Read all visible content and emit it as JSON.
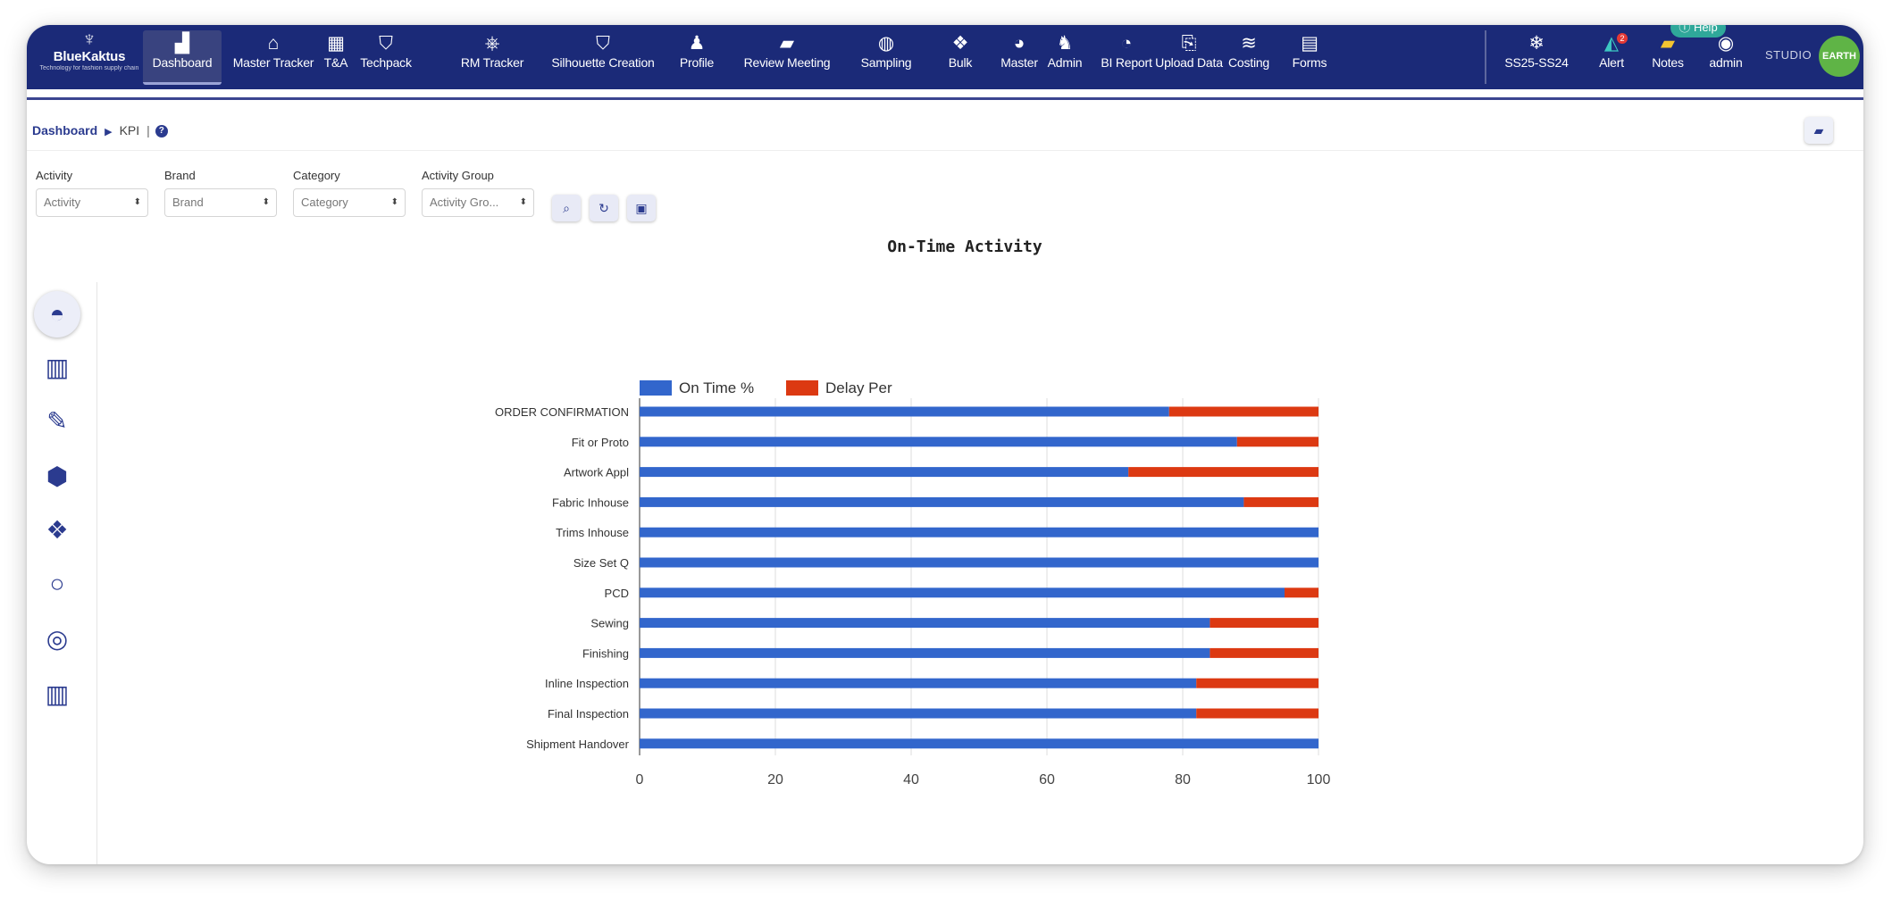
{
  "app": {
    "logo_text": "BlueKaktus",
    "logo_tagline": "Technology for fashion supply chain",
    "help_label": "Help",
    "studio_text": "STUDIO",
    "studio_badge": "EARTH"
  },
  "nav": {
    "items": [
      {
        "label": "Dashboard",
        "icon": "chart-area-icon",
        "glyph": "▟",
        "active": true
      },
      {
        "label": "Master Tracker",
        "icon": "home-icon",
        "glyph": "⌂"
      },
      {
        "label": "T&A",
        "icon": "calendar-icon",
        "glyph": "▦"
      },
      {
        "label": "Techpack",
        "icon": "shield-icon",
        "glyph": "⛉"
      },
      {
        "label": "RM Tracker",
        "icon": "dharma-wheel-icon",
        "glyph": "⎈"
      },
      {
        "label": "Silhouette Creation",
        "icon": "shield-icon",
        "glyph": "⛉"
      },
      {
        "label": "Profile",
        "icon": "users-icon",
        "glyph": "♟"
      },
      {
        "label": "Review Meeting",
        "icon": "video-icon",
        "glyph": "▰"
      },
      {
        "label": "Sampling",
        "icon": "globe-icon",
        "glyph": "◍"
      },
      {
        "label": "Bulk",
        "icon": "boxes-icon",
        "glyph": "❖"
      },
      {
        "label": "Master",
        "icon": "pie-icon",
        "glyph": "◕"
      },
      {
        "label": "Admin",
        "icon": "user-cog-icon",
        "glyph": "♞"
      },
      {
        "label": "BI Report",
        "icon": "pie-chart-icon",
        "glyph": "◔"
      },
      {
        "label": "Upload Data",
        "icon": "file-upload-icon",
        "glyph": "⎘"
      },
      {
        "label": "Costing",
        "icon": "rss-icon",
        "glyph": "≋"
      },
      {
        "label": "Forms",
        "icon": "form-icon",
        "glyph": "▤"
      }
    ],
    "right": [
      {
        "label": "SS25-SS24",
        "icon": "snowflake-icon",
        "glyph": "❄"
      },
      {
        "label": "Alert",
        "icon": "bell-icon",
        "glyph": "◭",
        "badge": "2"
      },
      {
        "label": "Notes",
        "icon": "sticky-note-icon",
        "glyph": "▰"
      },
      {
        "label": "admin",
        "icon": "user-circle-icon",
        "glyph": "◉"
      }
    ]
  },
  "breadcrumb": {
    "root": "Dashboard",
    "current": "KPI",
    "help_glyph": "?"
  },
  "filters": [
    {
      "label": "Activity",
      "value": "Activity"
    },
    {
      "label": "Brand",
      "value": "Brand"
    },
    {
      "label": "Category",
      "value": "Category"
    },
    {
      "label": "Activity Group",
      "value": "Activity Gro..."
    }
  ],
  "toolbar": {
    "search_icon": "search-icon",
    "refresh_icon": "refresh-icon",
    "export_icon": "export-icon"
  },
  "rail": [
    {
      "icon": "speedometer-icon",
      "glyph": "◓",
      "active": true
    },
    {
      "icon": "bar-chart-icon",
      "glyph": "▥"
    },
    {
      "icon": "edit-icon",
      "glyph": "✎"
    },
    {
      "icon": "cube-icon",
      "glyph": "⬢"
    },
    {
      "icon": "cubes-icon",
      "glyph": "❖"
    },
    {
      "icon": "circle-icon",
      "glyph": "○"
    },
    {
      "icon": "target-icon",
      "glyph": "◎"
    },
    {
      "icon": "bar-chart-icon",
      "glyph": "▥"
    }
  ],
  "chart_title": "On-Time Activity",
  "colors": {
    "on_time": "#3266cc",
    "delay": "#dc3912",
    "nav_bg": "#1b2a78"
  },
  "chart_data": {
    "type": "bar",
    "orientation": "horizontal",
    "stacked": true,
    "title": "On-Time Activity",
    "categories": [
      "ORDER CONFIRMATION",
      "Fit or Proto",
      "Artwork Appl",
      "Fabric Inhouse",
      "Trims Inhouse",
      "Size Set Q",
      "PCD",
      "Sewing",
      "Finishing",
      "Inline Inspection",
      "Final Inspection",
      "Shipment Handover"
    ],
    "series": [
      {
        "name": "On Time %",
        "color": "#3266cc",
        "values": [
          78,
          88,
          72,
          89,
          100,
          100,
          95,
          84,
          84,
          82,
          82,
          100
        ]
      },
      {
        "name": "Delay Per",
        "color": "#dc3912",
        "values": [
          22,
          12,
          28,
          11,
          0,
          0,
          5,
          16,
          16,
          18,
          18,
          0
        ]
      }
    ],
    "xlim": [
      0,
      100
    ],
    "xticks": [
      "0",
      "20",
      "40",
      "60",
      "80",
      "100"
    ],
    "grid": true,
    "legend": "top-left"
  }
}
